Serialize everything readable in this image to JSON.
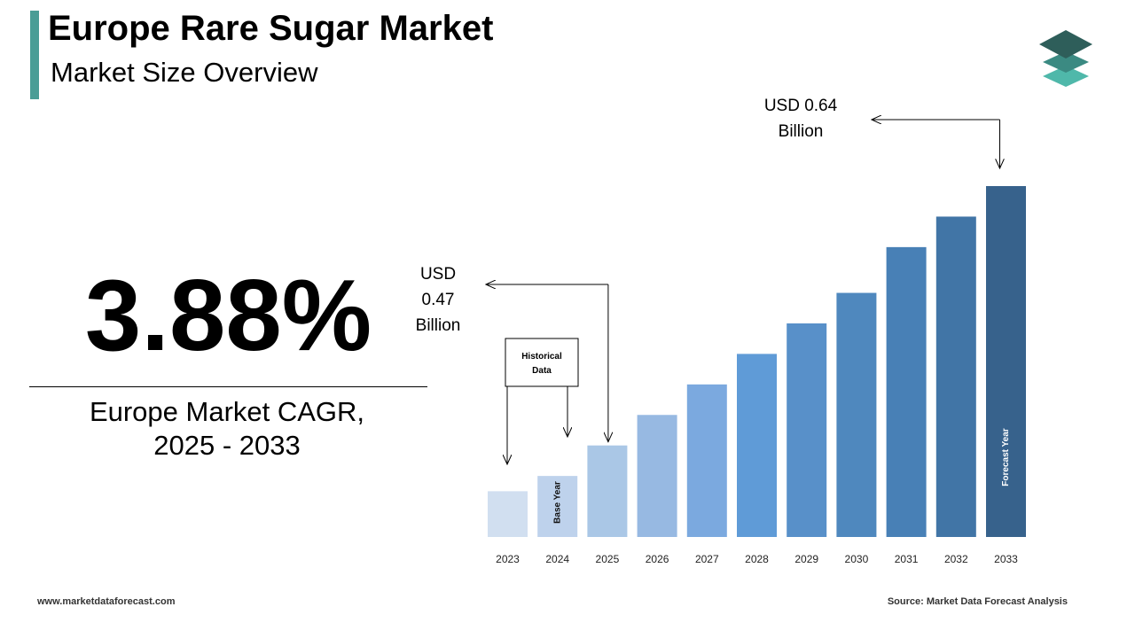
{
  "header": {
    "title": "Europe Rare Sugar Market",
    "subtitle": "Market Size Overview"
  },
  "cagr": {
    "value": "3.88%",
    "label_line1": "Europe Market CAGR,",
    "label_line2": "2025 - 2033"
  },
  "chart_data": {
    "type": "bar",
    "categories": [
      "2023",
      "2024",
      "2025",
      "2026",
      "2027",
      "2028",
      "2029",
      "2030",
      "2031",
      "2032",
      "2033"
    ],
    "values": [
      0.44,
      0.45,
      0.47,
      0.49,
      0.51,
      0.53,
      0.55,
      0.57,
      0.6,
      0.62,
      0.64
    ],
    "colors": [
      "#d1dff0",
      "#bed2ec",
      "#aac7e6",
      "#97b9e2",
      "#7ba9df",
      "#5f9bd7",
      "#5890c9",
      "#4f88be",
      "#4880b6",
      "#4175a6",
      "#37628c"
    ],
    "ylim": [
      0.41,
      0.645
    ],
    "bar_labels": {
      "1": "Base Year",
      "10": "Forecast Year"
    },
    "callouts": {
      "start": {
        "line1": "USD",
        "line2": "0.47",
        "line3": "Billion",
        "bar_index": 2
      },
      "end": {
        "line1": "USD 0.64",
        "line2": "Billion",
        "bar_index": 10
      }
    },
    "historical_box": {
      "line1": "Historical",
      "line2": "Data",
      "bar_indices": [
        0,
        1
      ]
    }
  },
  "footer": {
    "website": "www.marketdataforecast.com",
    "source": "Source: Market Data Forecast Analysis"
  }
}
